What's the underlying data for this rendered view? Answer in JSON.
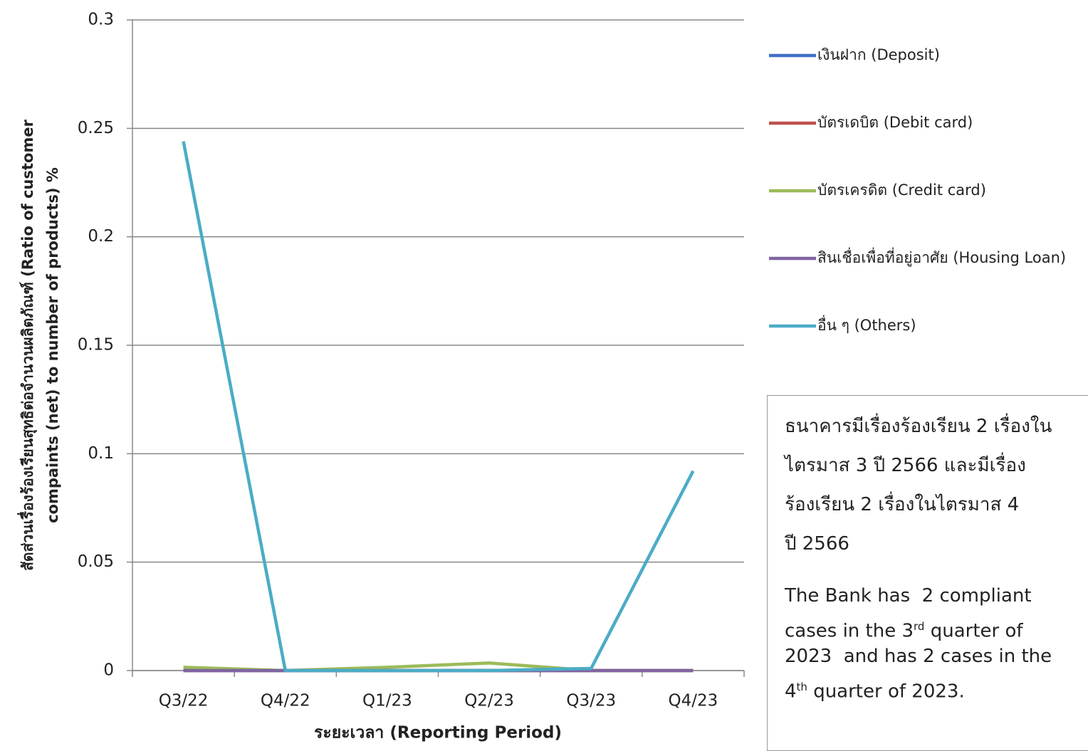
{
  "chart_data": {
    "type": "line",
    "y_label": [
      "สัดส่วนเรื่องร้องเรียนสุทธิต่อจำนวนผลิตภัณฑ์  (Ratio of customer",
      "compaints (net) to number of products) %"
    ],
    "x_label": "ระยะเวลา  (Reporting Period)",
    "categories": [
      "Q3/22",
      "Q4/22",
      "Q1/23",
      "Q2/23",
      "Q3/23",
      "Q4/23"
    ],
    "series": [
      {
        "name": "เงินฝาก (Deposit)",
        "color": "#3f6fc6",
        "values": [
          0,
          0,
          0,
          0,
          0,
          0
        ]
      },
      {
        "name": "บัตรเดบิต  (Debit card)",
        "color": "#c0504d",
        "values": [
          0,
          0,
          0,
          0,
          0,
          0
        ]
      },
      {
        "name": "บัตรเครดิต  (Credit card)",
        "color": "#9bbb59",
        "values": [
          0.0015,
          0,
          0.0015,
          0.0035,
          0,
          0
        ]
      },
      {
        "name": "สินเชื่อเพื่อที่อยู่อาศัย (Housing Loan)",
        "color": "#8064a2",
        "values": [
          0,
          0,
          0,
          0,
          0,
          0
        ]
      },
      {
        "name": "อื่น ๆ (Others)",
        "color": "#4bacc6",
        "values": [
          0.244,
          0,
          0,
          0,
          0.001,
          0.092
        ]
      }
    ],
    "ylim": [
      0,
      0.3
    ],
    "yticks": [
      0,
      0.05,
      0.1,
      0.15,
      0.2,
      0.25,
      0.3
    ],
    "grid": true,
    "legend": "right",
    "note_th": [
      "ธนาคารมีเรื่องร้องเรียน  2 เรื่องใน",
      "ไตรมาส 3 ปี 2566 และมีเรื่อง",
      "ร้องเรียน 2 เรื่องในไตรมาส 4",
      "ปี 2566"
    ],
    "note_en": [
      [
        "The Bank has  2 compliant"
      ],
      [
        "cases in the 3",
        "rd",
        " quarter of"
      ],
      [
        "2023  and has 2 cases in the"
      ],
      [
        "4",
        "th",
        " quarter of 2023."
      ]
    ]
  }
}
